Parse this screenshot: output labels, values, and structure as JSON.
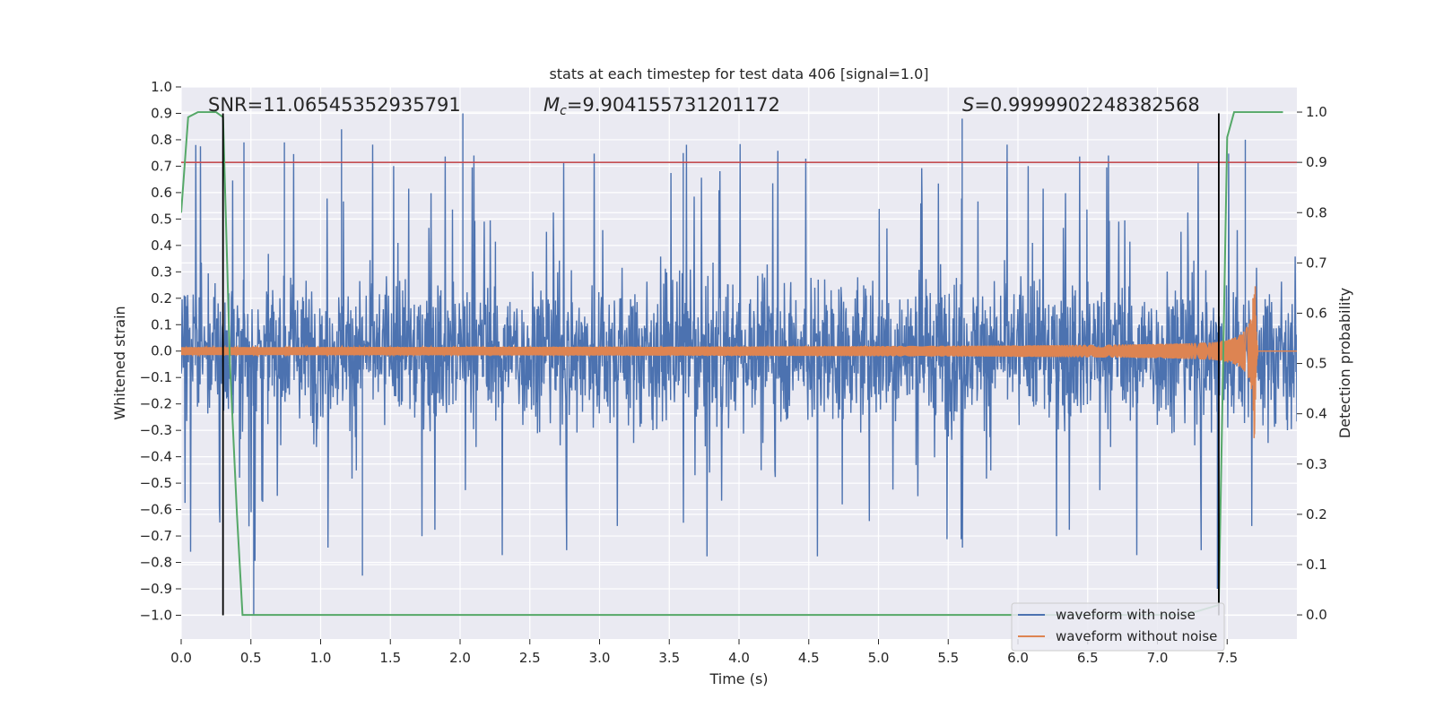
{
  "chart_data": {
    "type": "line",
    "title": "stats at each timestep for test data 406 [signal=1.0]",
    "xlabel": "Time (s)",
    "ylabel": "Whitened strain",
    "y2label": "Detection probability",
    "xlim": [
      0.0,
      8.0
    ],
    "ylim": [
      -1.09,
      1.0
    ],
    "y2lim": [
      -0.048,
      1.05
    ],
    "xticks": [
      "0.0",
      "0.5",
      "1.0",
      "1.5",
      "2.0",
      "2.5",
      "3.0",
      "3.5",
      "4.0",
      "4.5",
      "5.0",
      "5.5",
      "6.0",
      "6.5",
      "7.0",
      "7.5"
    ],
    "yticks": [
      "1.0",
      "0.9",
      "0.8",
      "0.7",
      "0.6",
      "0.5",
      "0.4",
      "0.3",
      "0.2",
      "0.1",
      "0.0",
      "−0.1",
      "−0.2",
      "−0.3",
      "−0.4",
      "−0.5",
      "−0.6",
      "−0.7",
      "−0.8",
      "−0.9",
      "−1.0"
    ],
    "y2ticks": [
      "1.0",
      "0.9",
      "0.8",
      "0.7",
      "0.6",
      "0.5",
      "0.4",
      "0.3",
      "0.2",
      "0.1",
      "0.0"
    ],
    "annotations": {
      "snr": "SNR=11.06545352935791",
      "mc_symbol": "M",
      "mc_subscript": "c",
      "mc_value": "=9.904155731201172",
      "s_symbol": "S",
      "s_value": "=0.9999902248382568"
    },
    "threshold_line": {
      "axis": "y2",
      "value": 0.9,
      "color": "#c44e52"
    },
    "vertical_markers": [
      {
        "x": 0.3,
        "y_bottom": -1.0,
        "y_top": 0.9
      },
      {
        "x": 7.44,
        "y_bottom": -1.0,
        "y_top": 0.9
      }
    ],
    "series": [
      {
        "name": "waveform with noise",
        "color": "#4c72b0",
        "typical_amplitude": 0.35,
        "peak_range": [
          -1.0,
          0.9
        ]
      },
      {
        "name": "waveform without noise",
        "color": "#dd8452",
        "chirp_start_amplitude": 0.015,
        "chirp_peak_amplitude": 0.33,
        "merger_time": 7.7,
        "ringdown_end": 7.72
      },
      {
        "name": "detection probability",
        "color": "#55a868",
        "axis": "y2",
        "x": [
          0.0,
          0.05,
          0.12,
          0.25,
          0.3,
          0.35,
          0.4,
          0.44,
          7.2,
          7.44,
          7.5,
          7.55,
          7.9
        ],
        "values": [
          0.8,
          0.99,
          1.0,
          1.0,
          0.99,
          0.5,
          0.2,
          0.0,
          0.0,
          0.02,
          0.95,
          1.0,
          1.0
        ]
      }
    ],
    "legend": {
      "position": "lower-right",
      "entries": [
        {
          "label": "waveform with noise",
          "color": "#4c72b0"
        },
        {
          "label": "waveform without noise",
          "color": "#dd8452"
        }
      ]
    },
    "background": "#eaeaf2",
    "grid": true
  }
}
